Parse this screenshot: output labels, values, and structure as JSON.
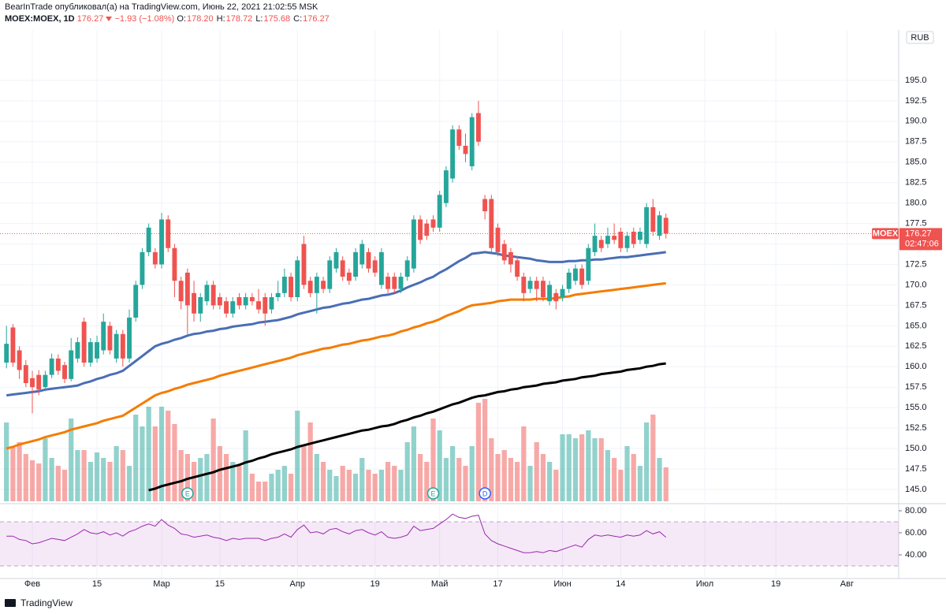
{
  "header": {
    "byline": "BearInTrade опубликовал(а) на TradingView.com, Июнь 22, 2021 21:02:55 MSK",
    "symbol": "MOEX:MOEX, 1D",
    "last": "176.27",
    "change": "−1.93 (−1.08%)",
    "ohlc": [
      {
        "label": "O:",
        "value": "178.20"
      },
      {
        "label": "H:",
        "value": "178.72"
      },
      {
        "label": "L:",
        "value": "175.68"
      },
      {
        "label": "C:",
        "value": "176.27"
      }
    ]
  },
  "price_tag": {
    "symbol": "MOEX",
    "countdown": "02:47:06"
  },
  "currency": "RUB",
  "footer": "TradingView",
  "chart_data": {
    "type": "candlestick",
    "up_color": "#26a69a",
    "down_color": "#ef5350",
    "grid": true,
    "xlim": [
      -1,
      138
    ],
    "ylim": [
      143.55,
      201.16
    ],
    "xticks": [
      {
        "value": 4,
        "label": "Фев"
      },
      {
        "value": 14,
        "label": "15"
      },
      {
        "value": 24,
        "label": "Мар"
      },
      {
        "value": 33,
        "label": "15"
      },
      {
        "value": 45,
        "label": "Апр"
      },
      {
        "value": 57,
        "label": "19"
      },
      {
        "value": 67,
        "label": "Май"
      },
      {
        "value": 76,
        "label": "17"
      },
      {
        "value": 86,
        "label": "Июн"
      },
      {
        "value": 95,
        "label": "14"
      },
      {
        "value": 108,
        "label": "Июл"
      },
      {
        "value": 119,
        "label": "19"
      },
      {
        "value": 130,
        "label": "Авг"
      }
    ],
    "yticks": [
      {
        "value": 145,
        "label": "145.0"
      },
      {
        "value": 147.5,
        "label": "147.5"
      },
      {
        "value": 150,
        "label": "150.0"
      },
      {
        "value": 152.5,
        "label": "152.5"
      },
      {
        "value": 155,
        "label": "155.0"
      },
      {
        "value": 157.5,
        "label": "157.5"
      },
      {
        "value": 160,
        "label": "160.0"
      },
      {
        "value": 162.5,
        "label": "162.5"
      },
      {
        "value": 165,
        "label": "165.0"
      },
      {
        "value": 167.5,
        "label": "167.5"
      },
      {
        "value": 170,
        "label": "170.0"
      },
      {
        "value": 172.5,
        "label": "172.5"
      },
      {
        "value": 175,
        "label": "175.0"
      },
      {
        "value": 177.5,
        "label": "177.5"
      },
      {
        "value": 180,
        "label": "180.0"
      },
      {
        "value": 182.5,
        "label": "182.5"
      },
      {
        "value": 185,
        "label": "185.0"
      },
      {
        "value": 187.5,
        "label": "187.5"
      },
      {
        "value": 190,
        "label": "190.0"
      },
      {
        "value": 192.5,
        "label": "192.5"
      },
      {
        "value": 195,
        "label": "195.0"
      }
    ],
    "open": [
      160.5,
      164.8,
      162.0,
      160.2,
      158.6,
      159.0,
      157.5,
      159.0,
      161.0,
      160.2,
      158.5,
      161.0,
      165.5,
      160.5,
      161.0,
      162.0,
      165.0,
      161.0,
      164.0,
      161.0,
      166.0,
      170.0,
      174.0,
      174.0,
      172.5,
      178.0,
      174.5,
      170.5,
      171.5,
      169.0,
      166.5,
      168.0,
      170.0,
      168.5,
      168.0,
      166.5,
      168.5,
      167.5,
      168.5,
      168.0,
      168.5,
      167.0,
      168.5,
      169.0,
      171.0,
      168.5,
      175.0,
      170.5,
      169.0,
      170.5,
      169.5,
      172.0,
      173.0,
      171.5,
      171.0,
      172.5,
      174.0,
      173.0,
      170.0,
      171.0,
      171.0,
      169.5,
      171.0,
      172.0,
      178.0,
      177.5,
      178.0,
      177.0,
      180.0,
      183.0,
      189.0,
      187.0,
      184.5,
      191.0,
      180.5,
      180.5,
      177.0,
      175.0,
      174.0,
      173.0,
      171.0,
      169.5,
      170.5,
      170.5,
      168.0,
      169.0,
      168.5,
      169.5,
      170.5,
      172.0,
      170.5,
      174.0,
      175.5,
      175.0,
      176.0,
      176.5,
      174.5,
      176.5,
      175.5,
      175.0,
      179.5,
      176.0,
      178.2
    ],
    "high": [
      165.0,
      165.2,
      162.5,
      160.8,
      159.5,
      159.6,
      159.5,
      161.6,
      161.5,
      160.6,
      163.5,
      163.6,
      166.0,
      163.5,
      163.8,
      166.5,
      165.5,
      164.5,
      164.5,
      167.0,
      170.5,
      174.5,
      177.5,
      174.5,
      178.8,
      178.5,
      175.0,
      171.0,
      172.0,
      170.5,
      169.0,
      170.5,
      170.5,
      169.0,
      168.5,
      168.5,
      169.0,
      169.0,
      169.0,
      169.5,
      169.0,
      169.0,
      170.5,
      172.0,
      171.5,
      173.5,
      176.0,
      171.0,
      171.5,
      171.0,
      173.5,
      174.5,
      173.5,
      172.0,
      174.5,
      175.5,
      174.5,
      173.5,
      174.5,
      171.5,
      171.5,
      171.5,
      173.5,
      178.5,
      178.5,
      178.0,
      178.5,
      181.5,
      184.5,
      189.5,
      189.5,
      188.5,
      191.0,
      192.5,
      181.0,
      181.0,
      177.5,
      175.5,
      174.5,
      173.5,
      171.5,
      171.0,
      171.0,
      171.0,
      170.5,
      169.5,
      170.0,
      172.0,
      172.5,
      172.5,
      175.0,
      177.5,
      176.0,
      177.0,
      177.5,
      177.0,
      176.5,
      177.0,
      177.0,
      180.0,
      180.5,
      179.0,
      178.72
    ],
    "low": [
      159.8,
      160.0,
      158.5,
      157.5,
      154.3,
      156.5,
      157.0,
      158.6,
      159.0,
      158.0,
      158.2,
      160.5,
      160.0,
      160.0,
      160.5,
      161.5,
      161.5,
      160.5,
      160.0,
      160.5,
      165.5,
      169.5,
      173.5,
      172.0,
      172.0,
      174.0,
      168.5,
      167.0,
      164.0,
      165.5,
      165.5,
      167.5,
      167.0,
      167.0,
      166.0,
      166.0,
      167.0,
      167.0,
      167.5,
      166.5,
      165.0,
      166.5,
      168.0,
      168.5,
      168.0,
      168.0,
      169.5,
      168.5,
      166.5,
      169.0,
      169.0,
      171.5,
      170.5,
      170.0,
      170.5,
      172.0,
      171.5,
      171.0,
      169.5,
      169.0,
      169.0,
      169.0,
      170.5,
      171.5,
      175.0,
      175.5,
      176.5,
      176.5,
      179.5,
      182.5,
      186.5,
      185.0,
      184.0,
      187.0,
      178.0,
      174.0,
      173.5,
      172.5,
      171.5,
      170.5,
      168.0,
      169.0,
      168.0,
      168.0,
      167.5,
      167.0,
      168.0,
      169.0,
      170.0,
      169.5,
      170.0,
      173.5,
      174.0,
      174.5,
      175.0,
      174.0,
      174.0,
      174.5,
      175.0,
      174.5,
      176.0,
      175.5,
      175.68
    ],
    "close": [
      162.8,
      160.5,
      159.6,
      158.0,
      157.5,
      157.2,
      159.0,
      161.0,
      159.5,
      158.5,
      162.0,
      163.0,
      160.5,
      163.0,
      163.0,
      165.5,
      162.0,
      164.0,
      161.0,
      166.0,
      170.0,
      174.0,
      177.0,
      172.5,
      178.0,
      174.5,
      170.5,
      168.0,
      167.5,
      166.5,
      168.5,
      170.0,
      167.5,
      167.5,
      166.5,
      168.0,
      167.5,
      168.5,
      168.0,
      167.0,
      166.5,
      168.5,
      169.0,
      171.0,
      168.5,
      173.0,
      170.0,
      169.0,
      171.0,
      169.5,
      173.0,
      174.0,
      171.0,
      170.5,
      174.0,
      175.0,
      172.0,
      171.5,
      174.0,
      169.5,
      169.5,
      171.0,
      173.0,
      178.0,
      175.5,
      176.0,
      177.0,
      181.0,
      184.0,
      189.0,
      187.0,
      186.0,
      190.5,
      187.5,
      179.0,
      174.5,
      174.0,
      173.0,
      172.5,
      171.0,
      169.0,
      170.5,
      169.5,
      168.5,
      170.0,
      168.0,
      169.5,
      171.5,
      172.0,
      170.0,
      174.5,
      176.0,
      174.5,
      176.0,
      175.5,
      174.5,
      176.0,
      175.0,
      176.5,
      179.5,
      176.5,
      178.5,
      176.27
    ],
    "volume": [
      100,
      68,
      75,
      60,
      52,
      48,
      80,
      55,
      45,
      40,
      105,
      65,
      65,
      50,
      62,
      55,
      50,
      70,
      65,
      45,
      110,
      95,
      120,
      95,
      120,
      115,
      98,
      65,
      60,
      50,
      55,
      60,
      105,
      70,
      60,
      50,
      45,
      90,
      35,
      25,
      25,
      35,
      40,
      45,
      35,
      115,
      70,
      100,
      60,
      50,
      40,
      32,
      45,
      40,
      35,
      55,
      40,
      35,
      40,
      50,
      45,
      40,
      75,
      95,
      60,
      50,
      105,
      90,
      55,
      70,
      55,
      45,
      70,
      125,
      130,
      80,
      60,
      65,
      55,
      50,
      95,
      45,
      75,
      60,
      50,
      40,
      85,
      85,
      80,
      85,
      90,
      80,
      80,
      65,
      55,
      40,
      70,
      60,
      45,
      100,
      110,
      55,
      43
    ],
    "moving_averages": [
      {
        "color": "#4a6eb5",
        "width": 3,
        "values": [
          156.5,
          156.6,
          156.7,
          156.8,
          156.9,
          157.0,
          157.2,
          157.3,
          157.4,
          157.5,
          157.6,
          157.7,
          158.0,
          158.2,
          158.5,
          158.7,
          159.0,
          159.2,
          159.5,
          160.1,
          160.7,
          161.3,
          161.9,
          162.5,
          162.8,
          163.0,
          163.3,
          163.5,
          163.8,
          164.0,
          164.1,
          164.3,
          164.4,
          164.6,
          164.7,
          164.9,
          165.0,
          165.1,
          165.2,
          165.4,
          165.5,
          165.6,
          165.7,
          165.9,
          166.1,
          166.4,
          166.6,
          166.8,
          167.0,
          167.2,
          167.3,
          167.5,
          167.7,
          167.8,
          168.0,
          168.2,
          168.3,
          168.5,
          168.7,
          168.8,
          169.0,
          169.3,
          169.7,
          170.0,
          170.3,
          170.7,
          171.0,
          171.5,
          171.9,
          172.4,
          172.9,
          173.3,
          173.8,
          173.9,
          174.0,
          173.9,
          173.8,
          173.6,
          173.5,
          173.4,
          173.3,
          173.2,
          173.0,
          172.9,
          172.8,
          172.8,
          172.8,
          172.9,
          172.9,
          173.0,
          173.0,
          173.1,
          173.1,
          173.2,
          173.3,
          173.4,
          173.4,
          173.5,
          173.6,
          173.7,
          173.8,
          173.9,
          174.0
        ]
      },
      {
        "color": "#f57c00",
        "width": 3,
        "values": [
          150.0,
          150.2,
          150.5,
          150.7,
          150.9,
          151.1,
          151.4,
          151.6,
          151.8,
          152.0,
          152.3,
          152.5,
          152.7,
          152.9,
          153.1,
          153.4,
          153.6,
          153.8,
          154.0,
          154.5,
          155.0,
          155.5,
          156.0,
          156.5,
          156.8,
          157.0,
          157.3,
          157.5,
          157.8,
          158.0,
          158.2,
          158.4,
          158.6,
          158.9,
          159.1,
          159.3,
          159.5,
          159.7,
          159.9,
          160.1,
          160.3,
          160.5,
          160.7,
          160.9,
          161.1,
          161.4,
          161.6,
          161.8,
          162.0,
          162.2,
          162.3,
          162.5,
          162.7,
          162.8,
          163.0,
          163.2,
          163.3,
          163.5,
          163.7,
          163.8,
          164.0,
          164.3,
          164.5,
          164.8,
          165.0,
          165.3,
          165.5,
          165.8,
          166.2,
          166.5,
          166.8,
          167.2,
          167.5,
          167.6,
          167.7,
          167.8,
          168.0,
          168.1,
          168.2,
          168.2,
          168.2,
          168.2,
          168.3,
          168.3,
          168.3,
          168.4,
          168.5,
          168.6,
          168.8,
          168.9,
          169.0,
          169.1,
          169.2,
          169.3,
          169.4,
          169.5,
          169.6,
          169.7,
          169.8,
          169.9,
          170.0,
          170.1,
          170.2
        ]
      },
      {
        "color": "#000000",
        "width": 3,
        "values": [
          null,
          null,
          null,
          null,
          null,
          null,
          null,
          null,
          null,
          null,
          null,
          null,
          null,
          null,
          null,
          null,
          null,
          null,
          null,
          null,
          null,
          null,
          144.9,
          145.1,
          145.4,
          145.6,
          145.8,
          146.0,
          146.3,
          146.5,
          146.7,
          146.9,
          147.1,
          147.4,
          147.6,
          147.8,
          148.0,
          148.3,
          148.5,
          148.8,
          149.0,
          149.3,
          149.5,
          149.7,
          149.9,
          150.2,
          150.4,
          150.6,
          150.8,
          151.0,
          151.2,
          151.4,
          151.6,
          151.8,
          152.0,
          152.2,
          152.3,
          152.5,
          152.7,
          152.8,
          153.0,
          153.3,
          153.5,
          153.8,
          154.0,
          154.3,
          154.5,
          154.8,
          155.1,
          155.4,
          155.6,
          155.9,
          156.2,
          156.4,
          156.5,
          156.7,
          156.9,
          157.0,
          157.2,
          157.3,
          157.5,
          157.6,
          157.7,
          157.9,
          158.0,
          158.1,
          158.3,
          158.4,
          158.5,
          158.7,
          158.8,
          158.9,
          159.1,
          159.2,
          159.3,
          159.4,
          159.6,
          159.7,
          159.8,
          160.0,
          160.1,
          160.3,
          160.4
        ]
      }
    ],
    "events": [
      {
        "x": 28,
        "label": "E",
        "color": "#26a69a"
      },
      {
        "x": 66,
        "label": "E",
        "color": "#26a69a"
      },
      {
        "x": 74,
        "label": "D",
        "color": "#2962ff"
      }
    ],
    "rsi": {
      "color": "#9c27b0",
      "ylim": [
        19.3,
        85
      ],
      "band": [
        30,
        70
      ],
      "yticks": [
        {
          "value": 40,
          "label": "40.00"
        },
        {
          "value": 60,
          "label": "60.00"
        },
        {
          "value": 80,
          "label": "80.00"
        }
      ],
      "values": [
        57,
        57,
        54,
        53,
        50,
        51,
        53,
        55,
        54,
        53,
        56,
        59,
        63,
        60,
        59,
        61,
        58,
        60,
        57,
        61,
        63,
        66,
        68,
        66,
        72,
        67,
        64,
        59,
        58,
        56,
        57,
        58,
        56,
        55,
        53,
        55,
        54,
        55,
        55,
        55,
        53,
        55,
        56,
        59,
        56,
        63,
        67,
        60,
        61,
        59,
        63,
        64,
        61,
        59,
        62,
        63,
        60,
        58,
        61,
        56,
        55,
        56,
        58,
        66,
        62,
        63,
        64,
        68,
        72,
        77,
        74,
        73,
        75,
        76,
        59,
        53,
        50,
        48,
        46,
        44,
        42,
        42,
        43,
        42,
        44,
        43,
        45,
        47,
        49,
        47,
        54,
        58,
        57,
        58,
        57,
        56,
        58,
        57,
        58,
        62,
        59,
        61,
        56
      ]
    }
  }
}
